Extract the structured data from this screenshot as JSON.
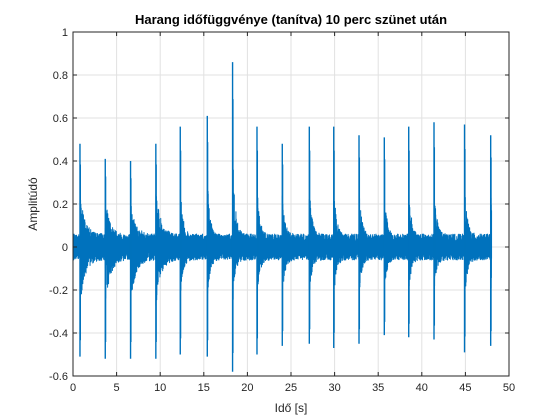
{
  "chart_data": {
    "type": "line",
    "title": "Harang időfüggvénye (tanítva) 10 perc szünet után",
    "xlabel": "Idő [s]",
    "ylabel": "Amplitúdó",
    "xlim": [
      0,
      50
    ],
    "ylim": [
      -0.6,
      1
    ],
    "xticks": [
      0,
      5,
      10,
      15,
      20,
      25,
      30,
      35,
      40,
      45,
      50
    ],
    "xtick_labels": [
      "0",
      "5",
      "10",
      "15",
      "20",
      "25",
      "30",
      "35",
      "40",
      "45",
      "50"
    ],
    "yticks": [
      -0.6,
      -0.4,
      -0.2,
      0,
      0.2,
      0.4,
      0.6,
      0.8,
      1
    ],
    "ytick_labels": [
      "-0.6",
      "-0.4",
      "-0.2",
      "0",
      "0.2",
      "0.4",
      "0.6",
      "0.8",
      "1"
    ],
    "grid": true,
    "series_color": "#0072bd",
    "signal_duration_s": 48,
    "noise_floor_amplitude": 0.06,
    "strikes": [
      {
        "t": 0.8,
        "pos": 0.48,
        "neg": -0.51
      },
      {
        "t": 3.7,
        "pos": 0.41,
        "neg": -0.52
      },
      {
        "t": 6.6,
        "pos": 0.4,
        "neg": -0.52
      },
      {
        "t": 9.5,
        "pos": 0.48,
        "neg": -0.52
      },
      {
        "t": 12.3,
        "pos": 0.56,
        "neg": -0.5
      },
      {
        "t": 15.4,
        "pos": 0.61,
        "neg": -0.51
      },
      {
        "t": 18.3,
        "pos": 0.86,
        "neg": -0.58
      },
      {
        "t": 21.1,
        "pos": 0.56,
        "neg": -0.5
      },
      {
        "t": 24.0,
        "pos": 0.48,
        "neg": -0.46
      },
      {
        "t": 27.1,
        "pos": 0.56,
        "neg": -0.45
      },
      {
        "t": 29.9,
        "pos": 0.56,
        "neg": -0.47
      },
      {
        "t": 32.8,
        "pos": 0.52,
        "neg": -0.45
      },
      {
        "t": 35.7,
        "pos": 0.51,
        "neg": -0.41
      },
      {
        "t": 38.5,
        "pos": 0.56,
        "neg": -0.42
      },
      {
        "t": 41.4,
        "pos": 0.58,
        "neg": -0.43
      },
      {
        "t": 44.9,
        "pos": 0.57,
        "neg": -0.49
      },
      {
        "t": 47.9,
        "pos": 0.52,
        "neg": -0.46
      }
    ]
  }
}
